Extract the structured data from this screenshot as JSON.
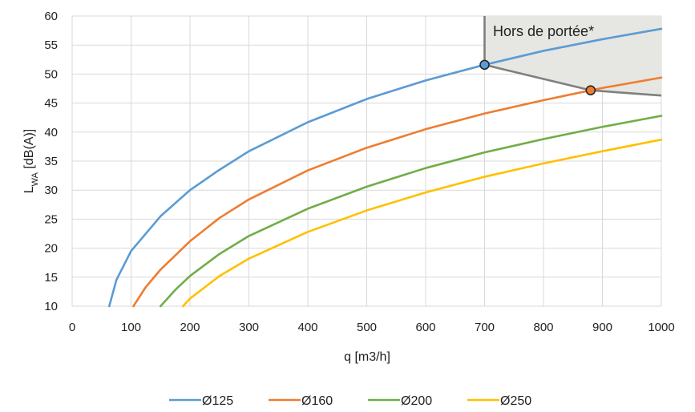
{
  "chart_data": {
    "type": "line",
    "xlabel": "q [m3/h]",
    "ylabel_main": "L",
    "ylabel_sub": "WA",
    "ylabel_rest": " [dB(A)]",
    "xlim": [
      0,
      1000
    ],
    "ylim": [
      10,
      60
    ],
    "x_ticks": [
      "0",
      "100",
      "200",
      "300",
      "400",
      "500",
      "600",
      "700",
      "800",
      "900",
      "1000"
    ],
    "y_ticks": [
      "10",
      "15",
      "20",
      "25",
      "30",
      "35",
      "40",
      "45",
      "50",
      "55",
      "60"
    ],
    "grid": true,
    "legend_position": "bottom",
    "series": [
      {
        "name": "Ø125",
        "color": "#5B9BD5",
        "x": [
          63,
          75,
          100,
          150,
          200,
          250,
          300,
          400,
          500,
          600,
          700,
          800,
          900,
          1000
        ],
        "y": [
          10,
          14.5,
          19.5,
          25.5,
          30,
          33.5,
          36.7,
          41.7,
          45.7,
          48.9,
          51.6,
          54,
          56,
          57.8
        ]
      },
      {
        "name": "Ø160",
        "color": "#ED7D31",
        "x": [
          104,
          125,
          150,
          200,
          250,
          300,
          400,
          500,
          600,
          700,
          800,
          880,
          900,
          1000
        ],
        "y": [
          10,
          13.3,
          16.3,
          21.2,
          25.2,
          28.4,
          33.4,
          37.3,
          40.5,
          43.2,
          45.5,
          47.2,
          47.6,
          49.4
        ]
      },
      {
        "name": "Ø200",
        "color": "#70AD47",
        "x": [
          150,
          175,
          200,
          250,
          300,
          400,
          500,
          600,
          700,
          800,
          900,
          1000
        ],
        "y": [
          10,
          12.8,
          15.2,
          19,
          22.1,
          26.8,
          30.6,
          33.8,
          36.5,
          38.8,
          40.9,
          42.8
        ]
      },
      {
        "name": "Ø250",
        "color": "#FFC000",
        "x": [
          188,
          200,
          250,
          300,
          400,
          500,
          600,
          700,
          800,
          900,
          1000
        ],
        "y": [
          10,
          11.3,
          15.2,
          18.2,
          22.8,
          26.5,
          29.6,
          32.3,
          34.6,
          36.7,
          38.7
        ]
      }
    ],
    "out_of_range": {
      "label": "Hors de portée*",
      "fill": "#E6E6E2",
      "border_color": "#7F7F7F",
      "boundary": {
        "x": [
          700,
          700,
          880,
          1000
        ],
        "y": [
          60,
          51.6,
          47.2,
          46.3
        ]
      },
      "markers": [
        {
          "x": 700,
          "y": 51.6,
          "color": "#5B9BD5"
        },
        {
          "x": 880,
          "y": 47.2,
          "color": "#ED7D31"
        }
      ]
    }
  }
}
